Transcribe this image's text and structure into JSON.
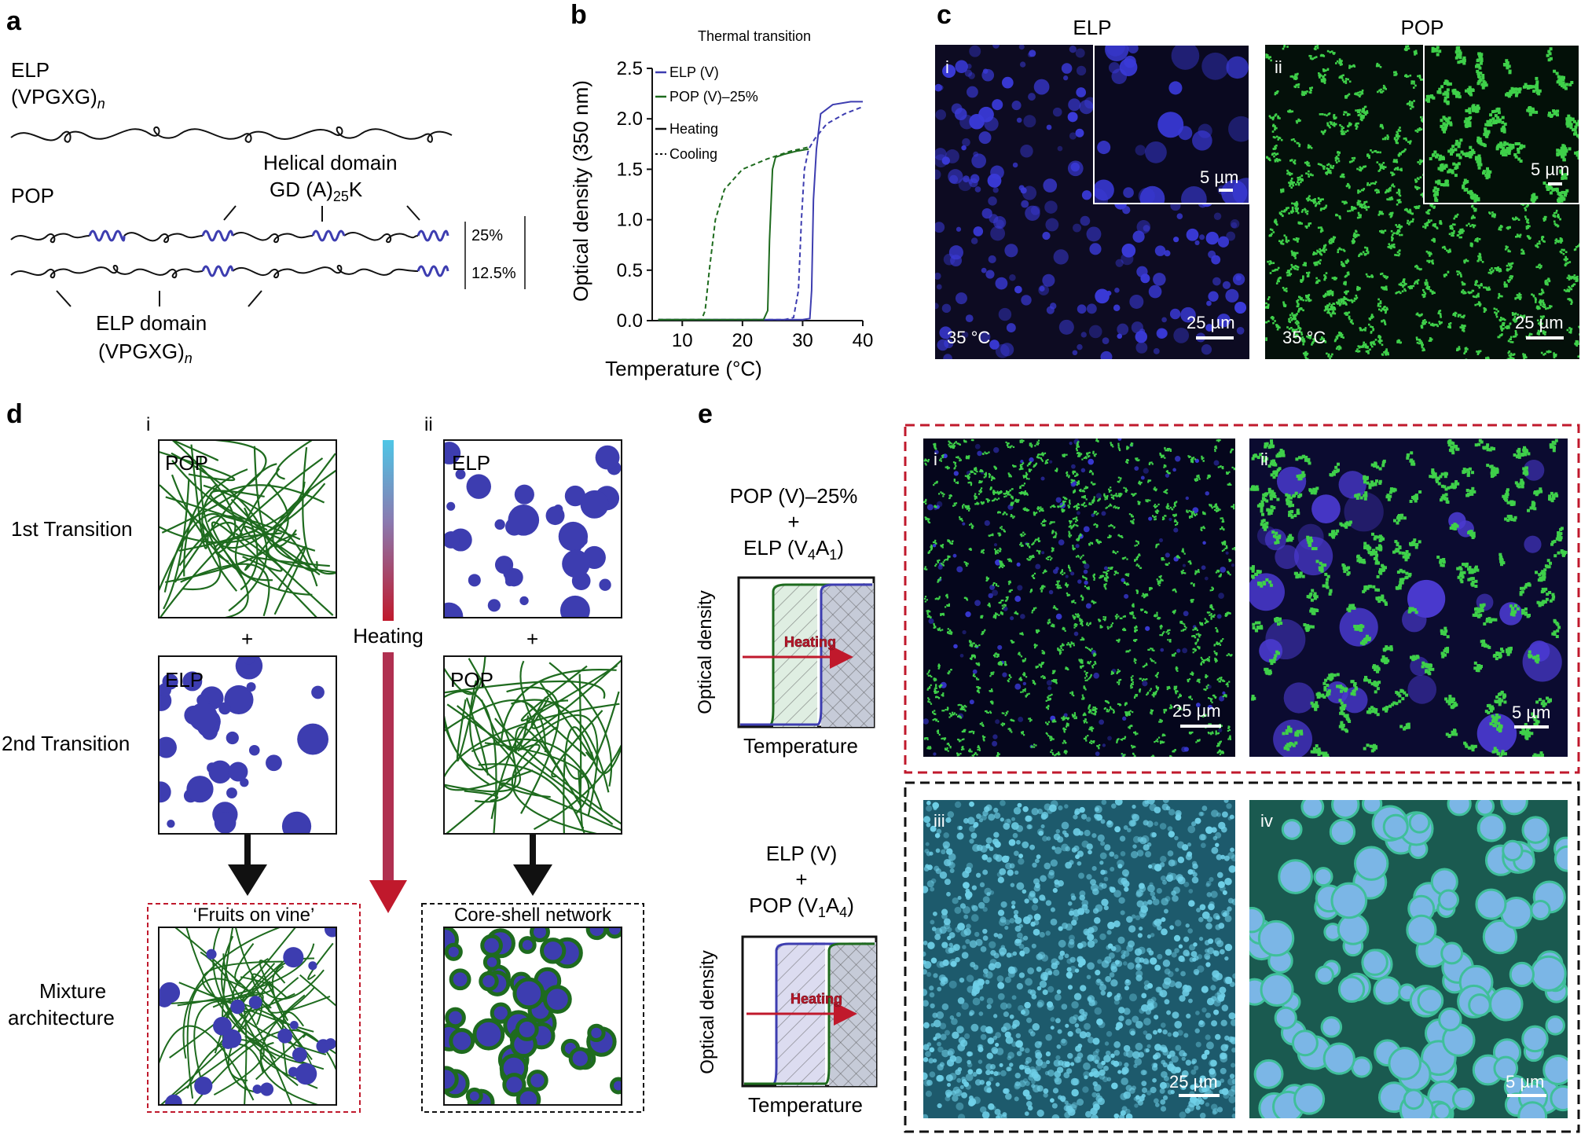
{
  "panel_labels": {
    "a": "a",
    "b": "b",
    "c": "c",
    "d": "d",
    "e": "e"
  },
  "colors": {
    "elp": "#3d3db0",
    "pop": "#1e6b1e",
    "red": "#c0192c",
    "cyan": "#4ec6e6"
  },
  "panel_a": {
    "elp_name": "ELP",
    "elp_seq": "(VPGXG)",
    "elp_sub": "n",
    "pop_name": "POP",
    "helical_line1": "Helical domain",
    "helical_line2_pre": "GD (A)",
    "helical_line2_sub": "25",
    "helical_line2_post": "K",
    "pct_25": "25%",
    "pct_125": "12.5%",
    "elp_domain_line1": "ELP domain",
    "elp_domain_seq": "(VPGXG)",
    "elp_domain_sub": "n"
  },
  "chart_data": {
    "type": "line",
    "title": "Thermal transition",
    "xlabel": "Temperature (°C)",
    "ylabel": "Optical density (350 nm)",
    "xlim": [
      5,
      40
    ],
    "ylim": [
      0,
      2.5
    ],
    "xticks": [
      10,
      20,
      30,
      40
    ],
    "yticks": [
      0.0,
      0.5,
      1.0,
      1.5,
      2.0,
      2.5
    ],
    "xtick_labels": [
      "10",
      "20",
      "30",
      "40"
    ],
    "ytick_labels": [
      "0.0",
      "0.5",
      "1.0",
      "1.5",
      "2.0",
      "2.5"
    ],
    "legend": {
      "position": "top-left",
      "entries": [
        "ELP (V)",
        "POP (V)–25%",
        "Heating",
        "Cooling"
      ]
    },
    "series": [
      {
        "name": "ELP (V)",
        "style": "Heating",
        "color": "#3d3db0",
        "x": [
          6,
          28,
          30,
          31.2,
          31.5,
          31.8,
          32.3,
          33,
          35,
          38,
          40
        ],
        "y": [
          0.01,
          0.01,
          0.01,
          0.02,
          0.3,
          1.2,
          1.7,
          2.05,
          2.14,
          2.17,
          2.17
        ]
      },
      {
        "name": "ELP (V)",
        "style": "Cooling",
        "color": "#3d3db0",
        "x": [
          6,
          27,
          28.5,
          29.3,
          29.8,
          30.3,
          31,
          32,
          34,
          37,
          40
        ],
        "y": [
          0.01,
          0.01,
          0.03,
          0.3,
          1.0,
          1.5,
          1.7,
          1.8,
          1.95,
          2.05,
          2.12
        ]
      },
      {
        "name": "POP (V)–25%",
        "style": "Heating",
        "color": "#1e6b1e",
        "x": [
          6,
          23.5,
          24.2,
          24.5,
          25,
          25.5,
          27,
          29,
          31
        ],
        "y": [
          0.01,
          0.01,
          0.1,
          0.8,
          1.5,
          1.62,
          1.65,
          1.68,
          1.7
        ]
      },
      {
        "name": "POP (V)–25%",
        "style": "Cooling",
        "color": "#1e6b1e",
        "x": [
          6,
          13.2,
          13.8,
          14.5,
          15.5,
          17,
          20,
          24,
          28,
          31
        ],
        "y": [
          0.01,
          0.01,
          0.1,
          0.5,
          1.0,
          1.3,
          1.5,
          1.6,
          1.68,
          1.72
        ]
      }
    ]
  },
  "panel_c": {
    "elp_title": "ELP",
    "pop_title": "POP",
    "roman_i": "i",
    "roman_ii": "ii",
    "temp_i": "35 °C",
    "temp_ii": "35 °C",
    "scale_25": "25 µm",
    "scale_5": "5 µm"
  },
  "panel_d": {
    "roman_i": "i",
    "roman_ii": "ii",
    "row1": "1st  Transition",
    "row2": "2nd  Transition",
    "row3_line1": "Mixture",
    "row3_line2": "architecture",
    "box_pop": "POP",
    "box_elp": "ELP",
    "plus": "+",
    "heating": "Heating",
    "fruits": "‘Fruits on vine’",
    "coreshell": "Core-shell network"
  },
  "panel_e": {
    "mix1_line1": "POP (V)–25%",
    "mix1_plus": "+",
    "mix1_line3_pre": "ELP (V",
    "mix1_sub1": "4",
    "mix1_mid": "A",
    "mix1_sub2": "1",
    "mix1_post": ")",
    "mix2_line1": "ELP (V)",
    "mix2_plus": "+",
    "mix2_line3_pre": "POP (V",
    "mix2_sub1": "1",
    "mix2_mid": "A",
    "mix2_sub2": "4",
    "mix2_post": ")",
    "od_label": "Optical density",
    "temp_label": "Temperature",
    "heating": "Heating",
    "roman": [
      "i",
      "ii",
      "iii",
      "iv"
    ],
    "scale_25": "25 µm",
    "scale_5": "5 µm"
  }
}
